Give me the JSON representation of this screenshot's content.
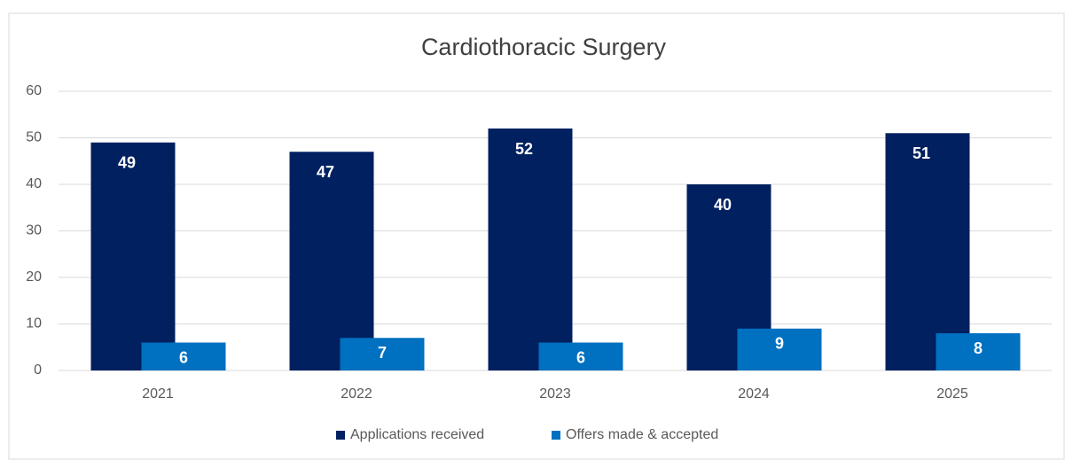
{
  "chart_data": {
    "type": "bar",
    "title": "Cardiothoracic Surgery",
    "categories": [
      "2021",
      "2022",
      "2023",
      "2024",
      "2025"
    ],
    "series": [
      {
        "name": "Applications received",
        "color": "#002060",
        "values": [
          49,
          47,
          52,
          40,
          51
        ]
      },
      {
        "name": "Offers made & accepted",
        "color": "#0070c0",
        "values": [
          6,
          7,
          6,
          9,
          8
        ]
      }
    ],
    "ylim": [
      0,
      60
    ],
    "yticks": [
      0,
      10,
      20,
      30,
      40,
      50,
      60
    ],
    "grid": true,
    "legend": "bottom",
    "data_labels": true
  }
}
